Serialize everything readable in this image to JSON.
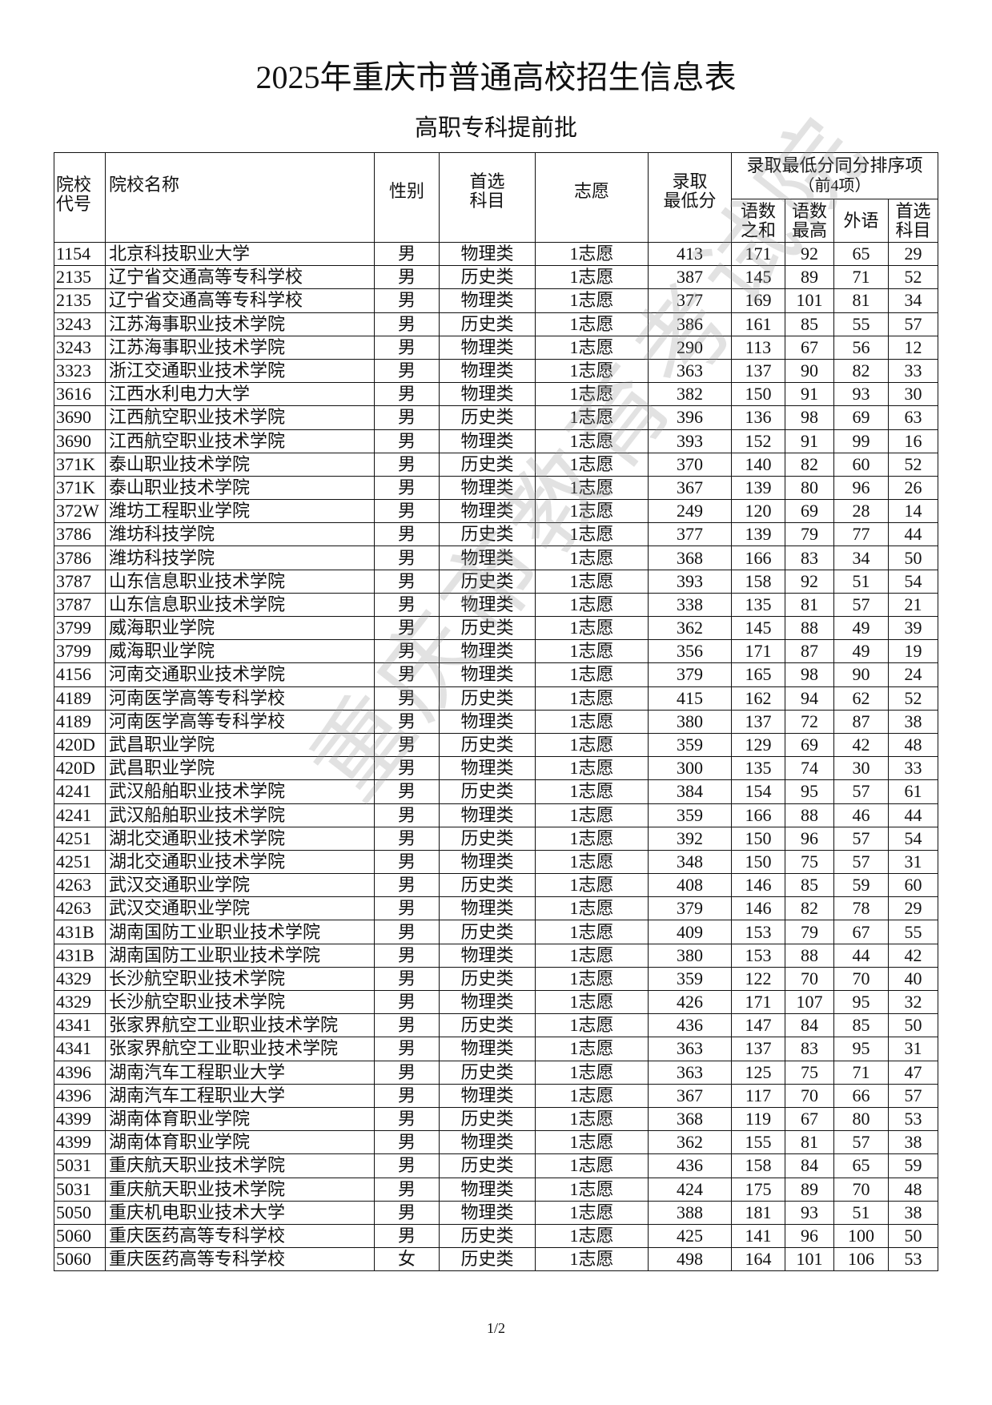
{
  "title": "2025年重庆市普通高校招生信息表",
  "subtitle": "高职专科提前批",
  "watermark": "重庆市教育考试院",
  "page_number": "1/2",
  "headers": {
    "code": "院校代号",
    "code_line1": "院校",
    "code_line2": "代号",
    "name": "院校名称",
    "gender": "性别",
    "subject_line1": "首选",
    "subject_line2": "科目",
    "choice": "志愿",
    "min_line1": "录取",
    "min_line2": "最低分",
    "tiebreak_line1": "录取最低分同分排序项",
    "tiebreak_line2": "（前4项）",
    "sub": [
      {
        "line1": "语数",
        "line2": "之和"
      },
      {
        "line1": "语数",
        "line2": "最高"
      },
      {
        "line1": "外语",
        "line2": ""
      },
      {
        "line1": "首选",
        "line2": "科目"
      }
    ]
  },
  "rows": [
    [
      "1154",
      "北京科技职业大学",
      "男",
      "物理类",
      "1志愿",
      "413",
      "171",
      "92",
      "65",
      "29"
    ],
    [
      "2135",
      "辽宁省交通高等专科学校",
      "男",
      "历史类",
      "1志愿",
      "387",
      "145",
      "89",
      "71",
      "52"
    ],
    [
      "2135",
      "辽宁省交通高等专科学校",
      "男",
      "物理类",
      "1志愿",
      "377",
      "169",
      "101",
      "81",
      "34"
    ],
    [
      "3243",
      "江苏海事职业技术学院",
      "男",
      "历史类",
      "1志愿",
      "386",
      "161",
      "85",
      "55",
      "57"
    ],
    [
      "3243",
      "江苏海事职业技术学院",
      "男",
      "物理类",
      "1志愿",
      "290",
      "113",
      "67",
      "56",
      "12"
    ],
    [
      "3323",
      "浙江交通职业技术学院",
      "男",
      "物理类",
      "1志愿",
      "363",
      "137",
      "90",
      "82",
      "33"
    ],
    [
      "3616",
      "江西水利电力大学",
      "男",
      "物理类",
      "1志愿",
      "382",
      "150",
      "91",
      "93",
      "30"
    ],
    [
      "3690",
      "江西航空职业技术学院",
      "男",
      "历史类",
      "1志愿",
      "396",
      "136",
      "98",
      "69",
      "63"
    ],
    [
      "3690",
      "江西航空职业技术学院",
      "男",
      "物理类",
      "1志愿",
      "393",
      "152",
      "91",
      "99",
      "16"
    ],
    [
      "371K",
      "泰山职业技术学院",
      "男",
      "历史类",
      "1志愿",
      "370",
      "140",
      "82",
      "60",
      "52"
    ],
    [
      "371K",
      "泰山职业技术学院",
      "男",
      "物理类",
      "1志愿",
      "367",
      "139",
      "80",
      "96",
      "26"
    ],
    [
      "372W",
      "潍坊工程职业学院",
      "男",
      "物理类",
      "1志愿",
      "249",
      "120",
      "69",
      "28",
      "14"
    ],
    [
      "3786",
      "潍坊科技学院",
      "男",
      "历史类",
      "1志愿",
      "377",
      "139",
      "79",
      "77",
      "44"
    ],
    [
      "3786",
      "潍坊科技学院",
      "男",
      "物理类",
      "1志愿",
      "368",
      "166",
      "83",
      "34",
      "50"
    ],
    [
      "3787",
      "山东信息职业技术学院",
      "男",
      "历史类",
      "1志愿",
      "393",
      "158",
      "92",
      "51",
      "54"
    ],
    [
      "3787",
      "山东信息职业技术学院",
      "男",
      "物理类",
      "1志愿",
      "338",
      "135",
      "81",
      "57",
      "21"
    ],
    [
      "3799",
      "威海职业学院",
      "男",
      "历史类",
      "1志愿",
      "362",
      "145",
      "88",
      "49",
      "39"
    ],
    [
      "3799",
      "威海职业学院",
      "男",
      "物理类",
      "1志愿",
      "356",
      "171",
      "87",
      "49",
      "19"
    ],
    [
      "4156",
      "河南交通职业技术学院",
      "男",
      "物理类",
      "1志愿",
      "379",
      "165",
      "98",
      "90",
      "24"
    ],
    [
      "4189",
      "河南医学高等专科学校",
      "男",
      "历史类",
      "1志愿",
      "415",
      "162",
      "94",
      "62",
      "52"
    ],
    [
      "4189",
      "河南医学高等专科学校",
      "男",
      "物理类",
      "1志愿",
      "380",
      "137",
      "72",
      "87",
      "38"
    ],
    [
      "420D",
      "武昌职业学院",
      "男",
      "历史类",
      "1志愿",
      "359",
      "129",
      "69",
      "42",
      "48"
    ],
    [
      "420D",
      "武昌职业学院",
      "男",
      "物理类",
      "1志愿",
      "300",
      "135",
      "74",
      "30",
      "33"
    ],
    [
      "4241",
      "武汉船舶职业技术学院",
      "男",
      "历史类",
      "1志愿",
      "384",
      "154",
      "95",
      "57",
      "61"
    ],
    [
      "4241",
      "武汉船舶职业技术学院",
      "男",
      "物理类",
      "1志愿",
      "359",
      "166",
      "88",
      "46",
      "44"
    ],
    [
      "4251",
      "湖北交通职业技术学院",
      "男",
      "历史类",
      "1志愿",
      "392",
      "150",
      "96",
      "57",
      "54"
    ],
    [
      "4251",
      "湖北交通职业技术学院",
      "男",
      "物理类",
      "1志愿",
      "348",
      "150",
      "75",
      "57",
      "31"
    ],
    [
      "4263",
      "武汉交通职业学院",
      "男",
      "历史类",
      "1志愿",
      "408",
      "146",
      "85",
      "59",
      "60"
    ],
    [
      "4263",
      "武汉交通职业学院",
      "男",
      "物理类",
      "1志愿",
      "379",
      "146",
      "82",
      "78",
      "29"
    ],
    [
      "431B",
      "湖南国防工业职业技术学院",
      "男",
      "历史类",
      "1志愿",
      "409",
      "153",
      "79",
      "67",
      "55"
    ],
    [
      "431B",
      "湖南国防工业职业技术学院",
      "男",
      "物理类",
      "1志愿",
      "380",
      "153",
      "88",
      "44",
      "42"
    ],
    [
      "4329",
      "长沙航空职业技术学院",
      "男",
      "历史类",
      "1志愿",
      "359",
      "122",
      "70",
      "70",
      "40"
    ],
    [
      "4329",
      "长沙航空职业技术学院",
      "男",
      "物理类",
      "1志愿",
      "426",
      "171",
      "107",
      "95",
      "32"
    ],
    [
      "4341",
      "张家界航空工业职业技术学院",
      "男",
      "历史类",
      "1志愿",
      "436",
      "147",
      "84",
      "85",
      "50"
    ],
    [
      "4341",
      "张家界航空工业职业技术学院",
      "男",
      "物理类",
      "1志愿",
      "363",
      "137",
      "83",
      "95",
      "31"
    ],
    [
      "4396",
      "湖南汽车工程职业大学",
      "男",
      "历史类",
      "1志愿",
      "363",
      "125",
      "75",
      "71",
      "47"
    ],
    [
      "4396",
      "湖南汽车工程职业大学",
      "男",
      "物理类",
      "1志愿",
      "367",
      "117",
      "70",
      "66",
      "57"
    ],
    [
      "4399",
      "湖南体育职业学院",
      "男",
      "历史类",
      "1志愿",
      "368",
      "119",
      "67",
      "80",
      "53"
    ],
    [
      "4399",
      "湖南体育职业学院",
      "男",
      "物理类",
      "1志愿",
      "362",
      "155",
      "81",
      "57",
      "38"
    ],
    [
      "5031",
      "重庆航天职业技术学院",
      "男",
      "历史类",
      "1志愿",
      "436",
      "158",
      "84",
      "65",
      "59"
    ],
    [
      "5031",
      "重庆航天职业技术学院",
      "男",
      "物理类",
      "1志愿",
      "424",
      "175",
      "89",
      "70",
      "48"
    ],
    [
      "5050",
      "重庆机电职业技术大学",
      "男",
      "物理类",
      "1志愿",
      "388",
      "181",
      "93",
      "51",
      "38"
    ],
    [
      "5060",
      "重庆医药高等专科学校",
      "男",
      "历史类",
      "1志愿",
      "425",
      "141",
      "96",
      "100",
      "50"
    ],
    [
      "5060",
      "重庆医药高等专科学校",
      "女",
      "历史类",
      "1志愿",
      "498",
      "164",
      "101",
      "106",
      "53"
    ]
  ]
}
